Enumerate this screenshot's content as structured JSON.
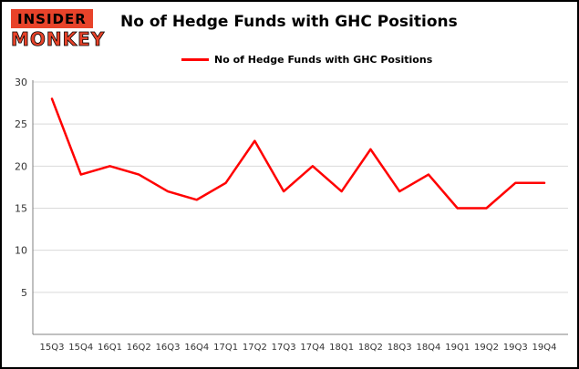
{
  "logo": {
    "line1": "INSIDER",
    "line2": "MONKEY"
  },
  "header": {
    "title": "No of Hedge Funds with GHC Positions"
  },
  "legend": {
    "label": "No of Hedge Funds with GHC Positions"
  },
  "chart_data": {
    "type": "line",
    "title": "No of Hedge Funds with GHC Positions",
    "categories": [
      "15Q3",
      "15Q4",
      "16Q1",
      "16Q2",
      "16Q3",
      "16Q4",
      "17Q1",
      "17Q2",
      "17Q3",
      "17Q4",
      "18Q1",
      "18Q2",
      "18Q3",
      "18Q4",
      "19Q1",
      "19Q2",
      "19Q3",
      "19Q4"
    ],
    "values": [
      28,
      19,
      20,
      19,
      17,
      16,
      18,
      23,
      17,
      20,
      17,
      22,
      17,
      19,
      15,
      15,
      18,
      18
    ],
    "xlabel": "",
    "ylabel": "",
    "ylim": [
      0,
      30
    ],
    "yticks": [
      5,
      10,
      15,
      20,
      25,
      30
    ],
    "grid": true,
    "legend_position": "top",
    "line_color": "#ff0000",
    "grid_color": "#d9d9d9",
    "axis_color": "#808080",
    "tick_label_color": "#333333"
  }
}
